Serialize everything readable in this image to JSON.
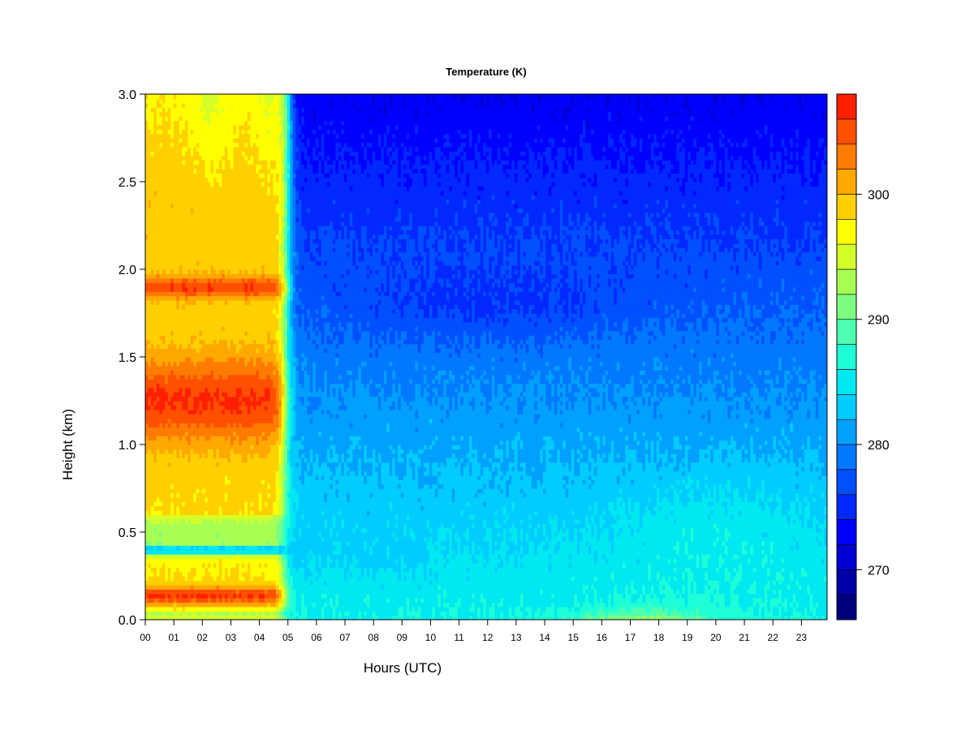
{
  "chart_data": {
    "type": "heatmap",
    "title": "Temperature (K)",
    "xlabel": "Hours (UTC)",
    "ylabel": "Height (km)",
    "x_ticks": [
      "00",
      "01",
      "02",
      "03",
      "04",
      "05",
      "06",
      "07",
      "08",
      "09",
      "10",
      "11",
      "12",
      "13",
      "14",
      "15",
      "16",
      "17",
      "18",
      "19",
      "20",
      "21",
      "22",
      "23"
    ],
    "x_range": [
      0,
      23.9
    ],
    "y_ticks": [
      "0.0",
      "0.5",
      "1.0",
      "1.5",
      "2.0",
      "2.5",
      "3.0"
    ],
    "y_range": [
      0,
      3.0
    ],
    "colorbar": {
      "range": [
        266,
        308
      ],
      "ticks": [
        270,
        280,
        290,
        300
      ],
      "levels": [
        266,
        268,
        270,
        272,
        274,
        276,
        278,
        280,
        282,
        284,
        286,
        288,
        290,
        292,
        294,
        296,
        298,
        300,
        302,
        304,
        306,
        308
      ],
      "colors": [
        "#00007f",
        "#0000a8",
        "#0000d4",
        "#0000ff",
        "#0028ff",
        "#0050ff",
        "#0078ff",
        "#00a0ff",
        "#00ccff",
        "#00e8f0",
        "#1effd8",
        "#4dffb0",
        "#7cff80",
        "#a8ff54",
        "#d4ff28",
        "#ffff00",
        "#ffd000",
        "#ffa800",
        "#ff7c00",
        "#ff5000",
        "#ff2000",
        "#e00000",
        "#a80000",
        "#7f0000"
      ]
    },
    "grid": false,
    "legend": "right"
  }
}
